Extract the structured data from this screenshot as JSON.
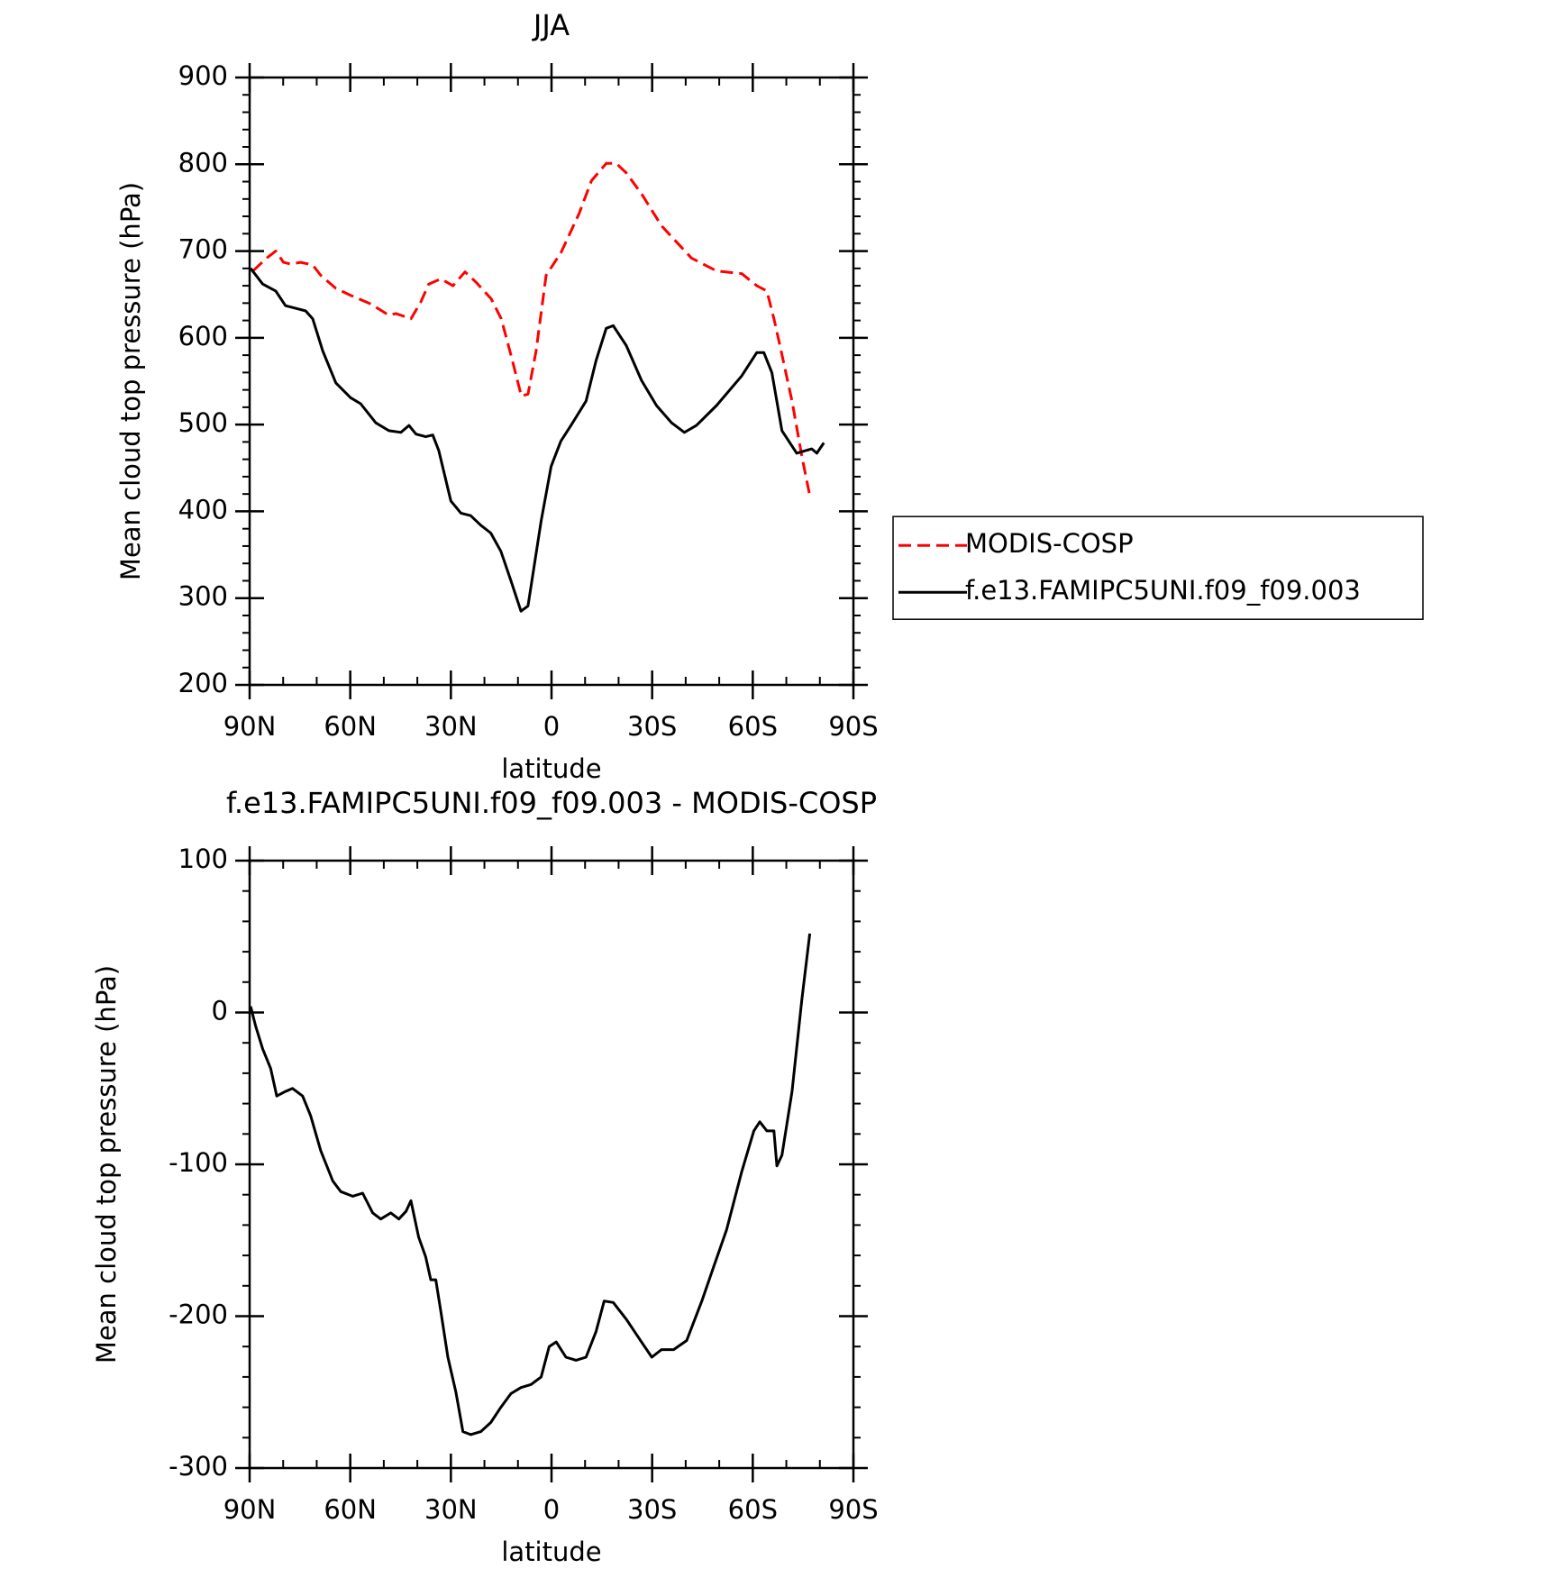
{
  "chart_data": [
    {
      "type": "line",
      "title": "JJA",
      "x_label": "latitude",
      "y_label": "Mean cloud top pressure (hPa)",
      "xlim": [
        90,
        -90
      ],
      "xticks": [
        {
          "value": 90,
          "label": "90N"
        },
        {
          "value": 60,
          "label": "60N"
        },
        {
          "value": 30,
          "label": "30N"
        },
        0,
        {
          "value": -30,
          "label": "30S"
        },
        {
          "value": -60,
          "label": "60S"
        },
        {
          "value": -90,
          "label": "90S"
        }
      ],
      "ylim": [
        200,
        900
      ],
      "yticks": [
        200,
        300,
        400,
        500,
        600,
        700,
        800,
        900
      ],
      "legend": "right",
      "series": [
        {
          "name": "MODIS-COSP",
          "color": "#ff0000",
          "dash": true,
          "x": [
            89,
            85.2,
            82.2,
            79.9,
            77.8,
            74.8,
            71.2,
            68.8,
            64.3,
            59.9,
            53.9,
            48.5,
            46.4,
            41.9,
            39,
            36.6,
            33,
            29.4,
            25.8,
            22.5,
            18,
            15,
            12,
            9,
            7,
            4.6,
            1.6,
            -2.8,
            -8.2,
            -11.9,
            -16.3,
            -19.3,
            -22.3,
            -26.8,
            -32.8,
            -41.7,
            -49.2,
            -56.7,
            -61.2,
            -64.2,
            -66.3,
            -68.1,
            -71.7,
            -74.6,
            -77
          ],
          "values": [
            677,
            691,
            700,
            687,
            685,
            687,
            684,
            672,
            657,
            649,
            639,
            626,
            628,
            622,
            641,
            662,
            668,
            660,
            676,
            664,
            645,
            622,
            579,
            533,
            535,
            585,
            672,
            698,
            743,
            781,
            801,
            801,
            790,
            766,
            729,
            692,
            677,
            674,
            660,
            654,
            622,
            591,
            527,
            464,
            418
          ]
        },
        {
          "name": "f.e13.FAMIPC5UNI.f09_f09.003",
          "color": "#000000",
          "dash": false,
          "x": [
            89.7,
            86.1,
            82.2,
            79.3,
            76.3,
            73.3,
            71.2,
            68.2,
            64.3,
            59.9,
            56.9,
            52.4,
            48.5,
            44.9,
            42.5,
            40.4,
            37.5,
            35.4,
            33.6,
            30,
            27,
            24.1,
            21.1,
            18.1,
            15.1,
            12.1,
            9.1,
            7,
            3.1,
            0.1,
            -2.8,
            -5.8,
            -10.3,
            -13.3,
            -16.3,
            -18.4,
            -22.3,
            -26.8,
            -31.3,
            -35.8,
            -39.6,
            -43.2,
            -49.2,
            -56.7,
            -61.2,
            -63.3,
            -65.7,
            -68.7,
            -73.1,
            -77.6,
            -79.1,
            -81.2
          ],
          "values": [
            680,
            662,
            654,
            637,
            634,
            631,
            622,
            585,
            548,
            531,
            524,
            502,
            493,
            491,
            499,
            489,
            486,
            488,
            470,
            412,
            398,
            395,
            384,
            375,
            354,
            320,
            285,
            291,
            389,
            452,
            481,
            499,
            527,
            574,
            611,
            614,
            591,
            551,
            522,
            502,
            491,
            499,
            522,
            556,
            583,
            583,
            560,
            493,
            467,
            472,
            467,
            479
          ]
        }
      ]
    },
    {
      "type": "line",
      "title": "f.e13.FAMIPC5UNI.f09_f09.003 - MODIS-COSP",
      "x_label": "latitude",
      "y_label": "Mean cloud top pressure (hPa)",
      "xlim": [
        90,
        -90
      ],
      "xticks": [
        {
          "value": 90,
          "label": "90N"
        },
        {
          "value": 60,
          "label": "60N"
        },
        {
          "value": 30,
          "label": "30N"
        },
        0,
        {
          "value": -30,
          "label": "30S"
        },
        {
          "value": -60,
          "label": "60S"
        },
        {
          "value": -90,
          "label": "90S"
        }
      ],
      "ylim": [
        -300,
        100
      ],
      "yticks": [
        -300,
        -200,
        -100,
        0,
        100
      ],
      "series": [
        {
          "color": "#000000",
          "dash": false,
          "x": [
            89.7,
            88.2,
            86.1,
            83.7,
            81.9,
            79.3,
            77.2,
            74.2,
            71.8,
            68.8,
            65.2,
            62.8,
            59.3,
            56.3,
            53.3,
            50.9,
            47.9,
            45.5,
            43.4,
            41.9,
            39.6,
            37.5,
            36,
            34.5,
            33,
            30.9,
            28.5,
            26.4,
            24.1,
            21.1,
            18.1,
            15.1,
            12.1,
            9.1,
            6.1,
            3.1,
            0.7,
            -1.4,
            -4.3,
            -7.3,
            -10.3,
            -13.3,
            -15.7,
            -18.4,
            -22.3,
            -26.8,
            -29.9,
            -32.8,
            -36.4,
            -40.3,
            -44.8,
            -48.4,
            -52.2,
            -56.7,
            -60.3,
            -62.1,
            -64.2,
            -66.3,
            -67.2,
            -68.7,
            -71.7,
            -74.6,
            -77
          ],
          "values": [
            4,
            -9,
            -24,
            -37,
            -55,
            -52,
            -50,
            -55,
            -68,
            -91,
            -111,
            -118,
            -121,
            -119,
            -132,
            -136,
            -132,
            -136,
            -131,
            -124,
            -148,
            -161,
            -176,
            -176,
            -197,
            -227,
            -250,
            -276,
            -278,
            -276,
            -270,
            -260,
            -251,
            -247,
            -245,
            -240,
            -220,
            -217,
            -227,
            -229,
            -227,
            -210,
            -190,
            -191,
            -202,
            -217,
            -227,
            -222,
            -222,
            -216,
            -190,
            -167,
            -143,
            -105,
            -78,
            -72,
            -78,
            -78,
            -101,
            -94,
            -52,
            8,
            52
          ]
        }
      ]
    }
  ]
}
